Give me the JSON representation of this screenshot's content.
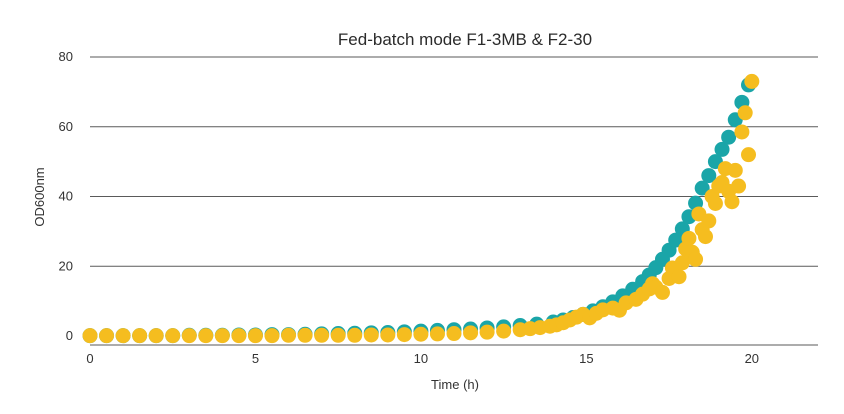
{
  "chart_data": {
    "type": "scatter",
    "title": "Fed-batch mode F1-3MB & F2-30",
    "xlabel": "Time (h)",
    "ylabel": "OD600nm",
    "xlim": [
      0,
      22
    ],
    "ylim": [
      0,
      80
    ],
    "xticks": [
      0,
      5,
      10,
      15,
      20
    ],
    "yticks": [
      0,
      20,
      40,
      60,
      80
    ],
    "grid": "horizontal",
    "legend": "none",
    "series": [
      {
        "color": "#1aa5a8",
        "x": [
          0,
          0.5,
          1,
          1.5,
          2,
          2.5,
          3,
          3.5,
          4,
          4.5,
          5,
          5.5,
          6,
          6.5,
          7,
          7.5,
          8,
          8.5,
          9,
          9.5,
          10,
          10.5,
          11,
          11.5,
          12,
          12.5,
          13,
          13.5,
          14,
          14.3,
          14.6,
          14.9,
          15.2,
          15.5,
          15.8,
          16.1,
          16.4,
          16.7,
          16.9,
          17.1,
          17.3,
          17.5,
          17.7,
          17.9,
          18.1,
          18.3,
          18.5,
          18.7,
          18.9,
          19.1,
          19.3,
          19.5,
          19.7,
          19.9
        ],
        "y": [
          0.1,
          0.1,
          0.1,
          0.1,
          0.1,
          0.1,
          0.2,
          0.2,
          0.2,
          0.3,
          0.3,
          0.4,
          0.4,
          0.5,
          0.6,
          0.7,
          0.8,
          0.9,
          1.0,
          1.2,
          1.4,
          1.6,
          1.8,
          2.0,
          2.3,
          2.6,
          3.0,
          3.4,
          4.0,
          4.6,
          5.3,
          6.2,
          7.2,
          8.4,
          9.8,
          11.5,
          13.4,
          15.6,
          17.5,
          19.6,
          22.0,
          24.6,
          27.5,
          30.7,
          34.2,
          38.1,
          42.4,
          46.0,
          50.0,
          53.5,
          57.0,
          62.0,
          67.0,
          72.0
        ]
      },
      {
        "color": "#f5bd1f",
        "x": [
          0,
          0.5,
          1,
          1.5,
          2,
          2.5,
          3,
          3.5,
          4,
          4.5,
          5,
          5.5,
          6,
          6.5,
          7,
          7.5,
          8,
          8.5,
          9,
          9.5,
          10,
          10.5,
          11,
          11.5,
          12,
          12.5,
          13,
          13.3,
          13.6,
          13.9,
          14.1,
          14.3,
          14.5,
          14.7,
          14.9,
          15.1,
          15.3,
          15.5,
          15.8,
          16.0,
          16.2,
          16.5,
          16.7,
          16.9,
          17.0,
          17.1,
          17.3,
          17.5,
          17.6,
          17.8,
          17.9,
          18.0,
          18.1,
          18.2,
          18.3,
          18.4,
          18.5,
          18.6,
          18.7,
          18.8,
          18.9,
          19.0,
          19.1,
          19.2,
          19.3,
          19.4,
          19.5,
          19.6,
          19.7,
          19.8,
          19.9,
          20.0
        ],
        "y": [
          0.1,
          0.1,
          0.1,
          0.1,
          0.1,
          0.1,
          0.1,
          0.1,
          0.1,
          0.1,
          0.1,
          0.1,
          0.2,
          0.2,
          0.2,
          0.2,
          0.2,
          0.3,
          0.3,
          0.4,
          0.5,
          0.6,
          0.7,
          0.9,
          1.1,
          1.4,
          1.8,
          2.1,
          2.4,
          2.8,
          3.2,
          3.8,
          4.6,
          5.4,
          6.2,
          5.2,
          6.5,
          7.5,
          8.0,
          7.4,
          9.5,
          10.5,
          12.0,
          13.5,
          15.0,
          14.0,
          12.5,
          16.5,
          19.5,
          17.0,
          21.0,
          25.0,
          28.0,
          24.0,
          22.0,
          35.0,
          30.5,
          28.5,
          33.0,
          40.0,
          38.0,
          43.0,
          44.0,
          48.0,
          41.5,
          38.5,
          47.5,
          43.0,
          58.5,
          64.0,
          52.0,
          73.0
        ]
      }
    ]
  }
}
